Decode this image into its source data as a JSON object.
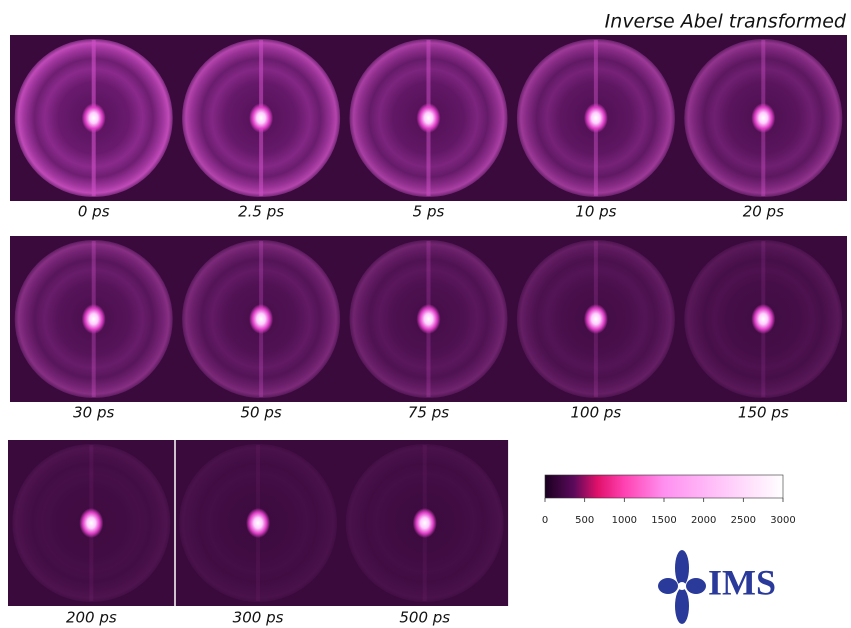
{
  "title": "Inverse Abel transformed",
  "rows": [
    {
      "panels": [
        {
          "label": "0 ps"
        },
        {
          "label": "2.5 ps"
        },
        {
          "label": "5 ps"
        },
        {
          "label": "10 ps"
        },
        {
          "label": "20 ps"
        }
      ]
    },
    {
      "panels": [
        {
          "label": "30 ps"
        },
        {
          "label": "50 ps"
        },
        {
          "label": "75 ps"
        },
        {
          "label": "100 ps"
        },
        {
          "label": "150 ps"
        }
      ]
    },
    {
      "panels": [
        {
          "label": "200 ps"
        },
        {
          "label": "300 ps"
        },
        {
          "label": "500 ps"
        }
      ]
    }
  ],
  "colorbar": {
    "lim": [
      0,
      3000
    ],
    "ticks": [
      0,
      500,
      1000,
      1500,
      2000,
      2500,
      3000
    ]
  },
  "logo": "IMS"
}
